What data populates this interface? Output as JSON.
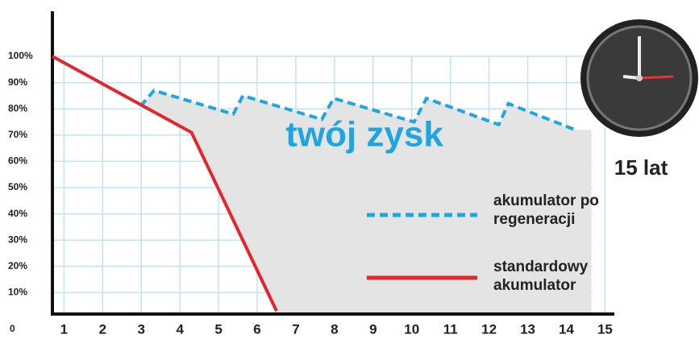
{
  "chart_data": {
    "type": "line",
    "annotation": "twój zysk",
    "clock_label": "15 lat",
    "xlim": [
      0.7,
      15.2
    ],
    "xticks": [
      1,
      2,
      3,
      4,
      5,
      6,
      7,
      8,
      9,
      10,
      11,
      12,
      13,
      14,
      15
    ],
    "ylim": [
      0,
      100
    ],
    "yticks": [
      0,
      {
        "value": 10,
        "label": "10%"
      },
      {
        "value": 20,
        "label": "20%"
      },
      {
        "value": 30,
        "label": "30%"
      },
      {
        "value": 40,
        "label": "40%"
      },
      {
        "value": 50,
        "label": "50%"
      },
      {
        "value": 60,
        "label": "60%"
      },
      {
        "value": 70,
        "label": "70%"
      },
      {
        "value": 80,
        "label": "80%"
      },
      {
        "value": 90,
        "label": "90%"
      },
      {
        "value": 100,
        "label": "100%"
      }
    ],
    "grid": true,
    "series": [
      {
        "name": "akumulator po regeneracji",
        "color": "#1ea6e0",
        "dashed": true,
        "x": [
          2.98,
          3.33,
          5.38,
          5.63,
          7.67,
          7.98,
          10.06,
          10.38,
          12.25,
          12.5,
          14.23
        ],
        "values": [
          81,
          87,
          78,
          85,
          76,
          84,
          75,
          84,
          74,
          82,
          72
        ]
      },
      {
        "name": "standardowy akumulator",
        "color": "#e4262c",
        "dashed": false,
        "x": [
          0.7,
          4.3,
          6.5
        ],
        "values": [
          100,
          71,
          3
        ]
      }
    ]
  }
}
